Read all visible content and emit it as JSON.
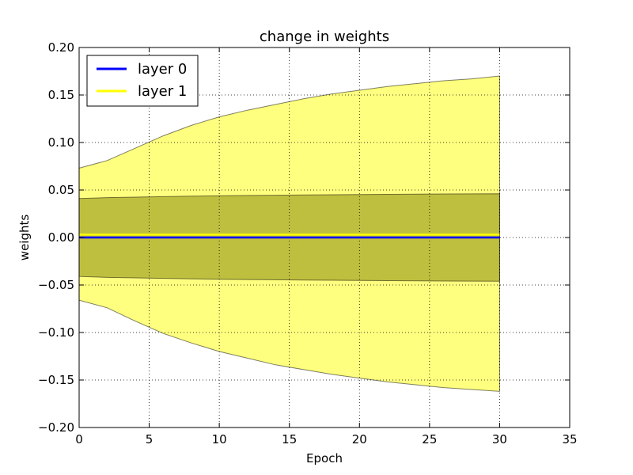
{
  "chart_data": {
    "type": "area",
    "title": "change in weights",
    "xlabel": "Epoch",
    "ylabel": "weights",
    "xlim": [
      0,
      35
    ],
    "ylim": [
      -0.2,
      0.2
    ],
    "xticks": [
      0,
      5,
      10,
      15,
      20,
      25,
      30,
      35
    ],
    "yticks": [
      -0.2,
      -0.15,
      -0.1,
      -0.05,
      0.0,
      0.05,
      0.1,
      0.15,
      0.2
    ],
    "xtick_labels": [
      "0",
      "5",
      "10",
      "15",
      "20",
      "25",
      "30",
      "35"
    ],
    "ytick_labels": [
      "−0.20",
      "−0.15",
      "−0.10",
      "−0.05",
      "0.00",
      "0.05",
      "0.10",
      "0.15",
      "0.20"
    ],
    "grid": true,
    "legend_position": "upper-left",
    "x": [
      0,
      2,
      4,
      6,
      8,
      10,
      12,
      14,
      16,
      18,
      20,
      22,
      24,
      26,
      28,
      30
    ],
    "series": [
      {
        "name": "layer 0",
        "color": "#0000ff",
        "band_color": "#808000",
        "mean": [
          0.0,
          0.0,
          0.0,
          0.0,
          0.0,
          0.0,
          0.0,
          0.0,
          0.0,
          0.0,
          0.0,
          0.0,
          0.0,
          0.0,
          0.0,
          0.0
        ],
        "upper": [
          0.041,
          0.042,
          0.0425,
          0.043,
          0.0435,
          0.044,
          0.0443,
          0.0445,
          0.0448,
          0.045,
          0.0452,
          0.0454,
          0.0456,
          0.0458,
          0.0459,
          0.046
        ],
        "lower": [
          -0.041,
          -0.042,
          -0.0425,
          -0.043,
          -0.0435,
          -0.044,
          -0.0443,
          -0.0445,
          -0.0448,
          -0.045,
          -0.0452,
          -0.0454,
          -0.0456,
          -0.0458,
          -0.0459,
          -0.046
        ]
      },
      {
        "name": "layer 1",
        "color": "#ffff00",
        "band_color": "#ffff00",
        "mean": [
          0.003,
          0.003,
          0.003,
          0.003,
          0.003,
          0.003,
          0.003,
          0.003,
          0.003,
          0.003,
          0.003,
          0.003,
          0.003,
          0.003,
          0.003,
          0.003
        ],
        "upper": [
          0.073,
          0.081,
          0.094,
          0.107,
          0.118,
          0.127,
          0.134,
          0.14,
          0.146,
          0.151,
          0.155,
          0.159,
          0.162,
          0.165,
          0.167,
          0.17
        ],
        "lower": [
          -0.066,
          -0.074,
          -0.088,
          -0.101,
          -0.111,
          -0.12,
          -0.127,
          -0.134,
          -0.139,
          -0.144,
          -0.148,
          -0.152,
          -0.155,
          -0.158,
          -0.16,
          -0.162
        ]
      }
    ]
  }
}
